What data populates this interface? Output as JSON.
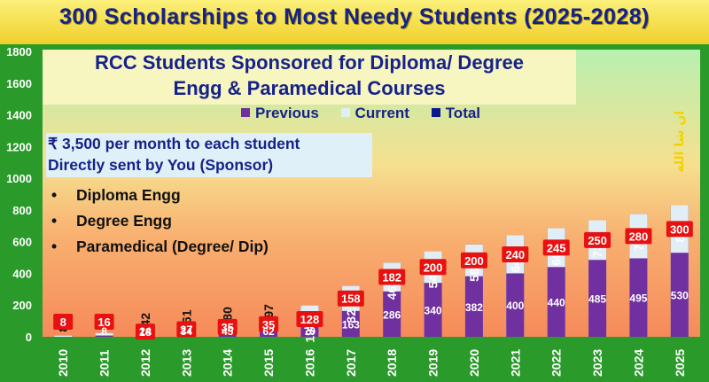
{
  "banner": {
    "title": "300 Scholarships to Most Needy Students (2025-2028)"
  },
  "subtitle": {
    "line1": "RCC Students Sponsored for Diploma/ Degree",
    "line2": "Engg &  Paramedical Courses"
  },
  "sponsor_note": {
    "line1": "₹ 3,500 per month to each student",
    "line2": "Directly sent by You (Sponsor)"
  },
  "courses": [
    "Diploma Engg",
    "Degree Engg",
    "Paramedical (Degree/ Dip)"
  ],
  "bullet": "•",
  "colors": {
    "previous": "#7030a0",
    "current": "#e2eef6",
    "total": "#0a1a8c",
    "current_label_bg": "#e81010",
    "banner_text": "#16228a",
    "axis_text": "#ffffff",
    "inshallah_text": "#f2d200"
  },
  "inshallah": "ان شا الله",
  "chart_data": {
    "type": "bar",
    "stacked": true,
    "categories": [
      "2010",
      "2011",
      "2012",
      "2013",
      "2014",
      "2015",
      "2016",
      "2017",
      "2018",
      "2019",
      "2020",
      "2021",
      "2022",
      "2023",
      "2024",
      "2025"
    ],
    "series": [
      {
        "name": "Previous",
        "values": [
          0,
          8,
          24,
          34,
          45,
          62,
          70,
          163,
          286,
          340,
          382,
          400,
          440,
          485,
          495,
          530
        ]
      },
      {
        "name": "Current",
        "values": [
          8,
          16,
          18,
          27,
          35,
          35,
          128,
          158,
          182,
          200,
          200,
          240,
          245,
          250,
          280,
          300
        ]
      },
      {
        "name": "Total",
        "values": [
          8,
          24,
          42,
          61,
          80,
          97,
          198,
          321,
          468,
          540,
          582,
          640,
          685,
          735,
          775,
          830
        ]
      }
    ],
    "ylim": [
      0,
      1800
    ],
    "yticks": [
      0,
      200,
      400,
      600,
      800,
      1000,
      1200,
      1400,
      1600,
      1800
    ],
    "legend_position": "top",
    "grid": false
  }
}
